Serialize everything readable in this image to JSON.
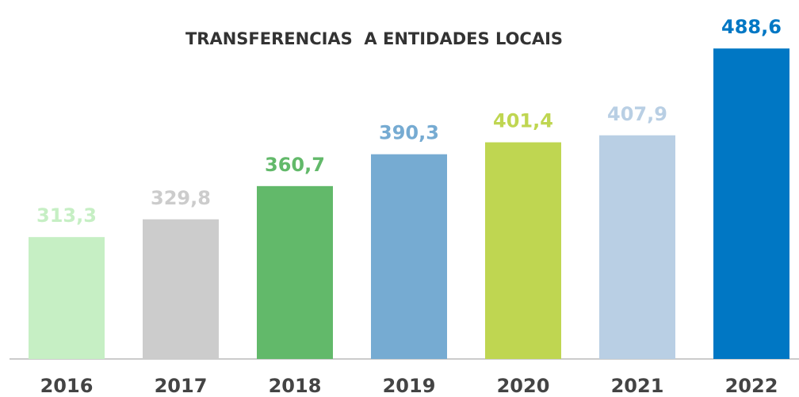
{
  "chart_data": {
    "type": "bar",
    "title": "TRANSFERENCIAS  A ENTIDADES LOCAIS",
    "categories": [
      "2016",
      "2017",
      "2018",
      "2019",
      "2020",
      "2021",
      "2022"
    ],
    "values": [
      313.3,
      329.8,
      360.7,
      390.3,
      401.4,
      407.9,
      488.6
    ],
    "value_labels": [
      "313,3",
      "329,8",
      "360,7",
      "390,3",
      "401,4",
      "407,9",
      "488,6"
    ],
    "colors": [
      "#c6efc4",
      "#cccccc",
      "#62b96a",
      "#76abd2",
      "#bfd651",
      "#b9cfe4",
      "#0077c4"
    ],
    "ylim": [
      200,
      530
    ]
  }
}
